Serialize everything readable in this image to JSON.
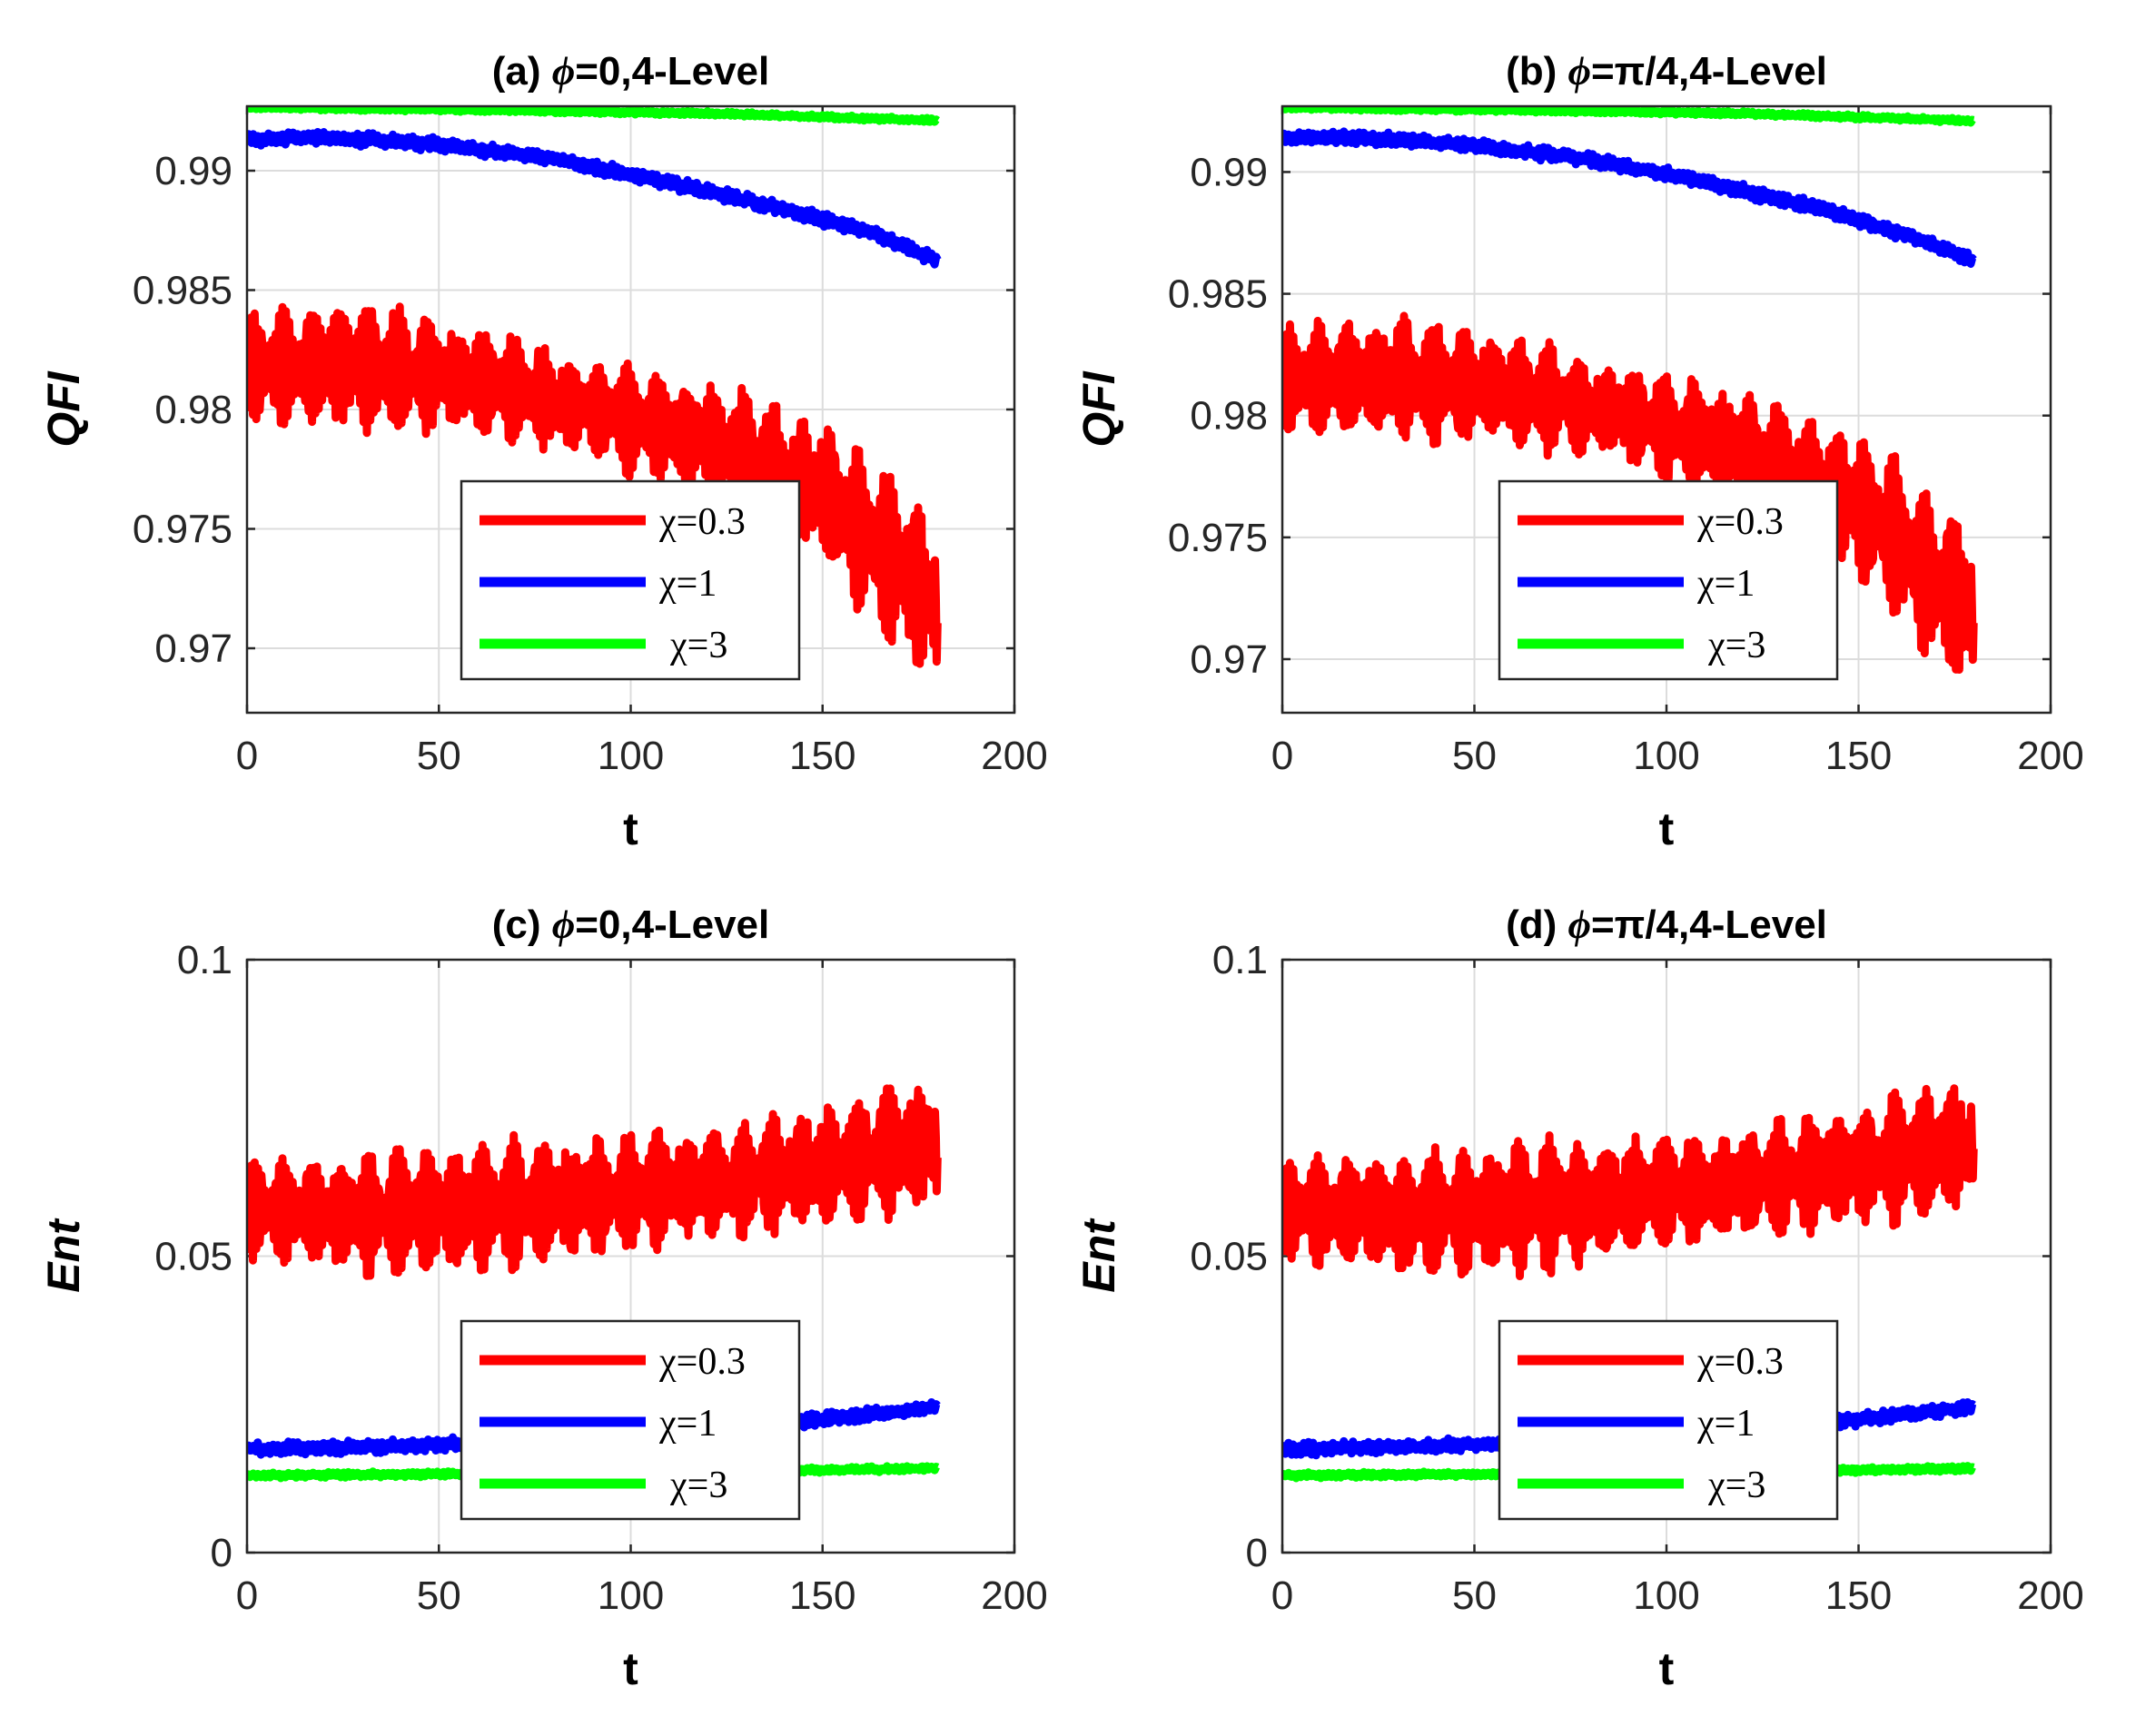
{
  "chart_data": [
    {
      "type": "line",
      "title_prefix": "(a) ",
      "title_phi": "ϕ",
      "title_suffix": "=0,4-Level",
      "xlabel": "t",
      "ylabel": "QFI",
      "xlim": [
        0,
        200
      ],
      "ylim": [
        0.9673,
        0.9927
      ],
      "xticks": [
        "0",
        "50",
        "100",
        "150",
        "200"
      ],
      "yticks": [
        {
          "value": 0.97,
          "label": "0.97"
        },
        {
          "value": 0.975,
          "label": "0.975"
        },
        {
          "value": 0.98,
          "label": "0.98"
        },
        {
          "value": 0.985,
          "label": "0.985"
        },
        {
          "value": 0.99,
          "label": "0.99"
        }
      ],
      "grid": true,
      "legend_position": "bottom-center",
      "series": [
        {
          "name": "χ=0.3",
          "color": "#ff0000",
          "t": [
            0,
            30,
            60,
            90,
            120,
            150,
            180
          ],
          "values": [
            0.9817,
            0.9818,
            0.9812,
            0.98,
            0.9787,
            0.9765,
            0.9718
          ],
          "osc_amp": [
            0.0022,
            0.0028,
            0.0022,
            0.002,
            0.0025,
            0.003,
            0.0038
          ]
        },
        {
          "name": "χ=1",
          "color": "#0000ff",
          "t": [
            0,
            20,
            50,
            80,
            110,
            140,
            165,
            180
          ],
          "values": [
            0.9913,
            0.9914,
            0.9911,
            0.9905,
            0.9895,
            0.9884,
            0.9873,
            0.9862
          ],
          "osc_amp": [
            0.0003,
            0.0003,
            0.0003,
            0.0003,
            0.0003,
            0.0003,
            0.0003,
            0.0003
          ]
        },
        {
          "name": "χ=3",
          "color": "#00ff00",
          "t": [
            0,
            60,
            120,
            180
          ],
          "values": [
            0.99265,
            0.99255,
            0.9924,
            0.9921
          ],
          "osc_amp": [
            0.0001,
            0.0001,
            0.0001,
            0.0001
          ]
        }
      ]
    },
    {
      "type": "line",
      "title_prefix": "(b) ",
      "title_phi": "ϕ",
      "title_suffix": "=π/4,4-Level",
      "xlabel": "t",
      "ylabel": "QFI",
      "xlim": [
        0,
        200
      ],
      "ylim": [
        0.9678,
        0.9927
      ],
      "xticks": [
        "0",
        "50",
        "100",
        "150",
        "200"
      ],
      "yticks": [
        {
          "value": 0.97,
          "label": "0.97"
        },
        {
          "value": 0.975,
          "label": "0.975"
        },
        {
          "value": 0.98,
          "label": "0.98"
        },
        {
          "value": 0.985,
          "label": "0.985"
        },
        {
          "value": 0.99,
          "label": "0.99"
        }
      ],
      "grid": true,
      "legend_position": "bottom-center",
      "series": [
        {
          "name": "χ=0.3",
          "color": "#ff0000",
          "t": [
            0,
            30,
            60,
            90,
            120,
            150,
            180
          ],
          "values": [
            0.9815,
            0.9815,
            0.981,
            0.98,
            0.9785,
            0.9762,
            0.9718
          ],
          "osc_amp": [
            0.0022,
            0.0026,
            0.0022,
            0.002,
            0.0025,
            0.003,
            0.0036
          ]
        },
        {
          "name": "χ=1",
          "color": "#0000ff",
          "t": [
            0,
            20,
            50,
            80,
            110,
            140,
            165,
            180
          ],
          "values": [
            0.9914,
            0.9914,
            0.9911,
            0.9905,
            0.9896,
            0.9885,
            0.9873,
            0.9863
          ],
          "osc_amp": [
            0.0003,
            0.0003,
            0.0003,
            0.0003,
            0.0003,
            0.0003,
            0.0003,
            0.0003
          ]
        },
        {
          "name": "χ=3",
          "color": "#00ff00",
          "t": [
            0,
            60,
            120,
            180
          ],
          "values": [
            0.99265,
            0.99255,
            0.9924,
            0.9921
          ],
          "osc_amp": [
            0.0001,
            0.0001,
            0.0001,
            0.0001
          ]
        }
      ]
    },
    {
      "type": "line",
      "title_prefix": "(c) ",
      "title_phi": "ϕ",
      "title_suffix": "=0,4-Level",
      "xlabel": "t",
      "ylabel": "Ent",
      "xlim": [
        0,
        200
      ],
      "ylim": [
        0,
        0.1
      ],
      "xticks": [
        "0",
        "50",
        "100",
        "150",
        "200"
      ],
      "yticks": [
        {
          "value": 0,
          "label": "0"
        },
        {
          "value": 0.05,
          "label": "0.05"
        },
        {
          "value": 0.1,
          "label": "0.1"
        }
      ],
      "grid": true,
      "legend_position": "bottom-center",
      "series": [
        {
          "name": "χ=0.3",
          "color": "#ff0000",
          "t": [
            0,
            30,
            60,
            90,
            120,
            150,
            180
          ],
          "values": [
            0.058,
            0.057,
            0.058,
            0.06,
            0.062,
            0.065,
            0.069
          ],
          "osc_amp": [
            0.008,
            0.01,
            0.011,
            0.01,
            0.009,
            0.01,
            0.011
          ]
        },
        {
          "name": "χ=1",
          "color": "#0000ff",
          "t": [
            0,
            30,
            60,
            90,
            120,
            150,
            180
          ],
          "values": [
            0.0175,
            0.0178,
            0.0185,
            0.0195,
            0.021,
            0.0225,
            0.0245
          ],
          "osc_amp": [
            0.0012,
            0.0012,
            0.0012,
            0.0012,
            0.0012,
            0.0012,
            0.0012
          ]
        },
        {
          "name": "χ=3",
          "color": "#00ff00",
          "t": [
            0,
            60,
            120,
            180
          ],
          "values": [
            0.013,
            0.0133,
            0.0137,
            0.0142
          ],
          "osc_amp": [
            0.0005,
            0.0005,
            0.0005,
            0.0005
          ]
        }
      ]
    },
    {
      "type": "line",
      "title_prefix": "(d) ",
      "title_phi": "ϕ",
      "title_suffix": "=π/4,4-Level",
      "xlabel": "t",
      "ylabel": "Ent",
      "xlim": [
        0,
        200
      ],
      "ylim": [
        0,
        0.1
      ],
      "xticks": [
        "0",
        "50",
        "100",
        "150",
        "200"
      ],
      "yticks": [
        {
          "value": 0,
          "label": "0"
        },
        {
          "value": 0.05,
          "label": "0.05"
        },
        {
          "value": 0.1,
          "label": "0.1"
        }
      ],
      "grid": true,
      "legend_position": "bottom-center",
      "series": [
        {
          "name": "χ=0.3",
          "color": "#ff0000",
          "t": [
            0,
            30,
            60,
            90,
            120,
            150,
            180
          ],
          "values": [
            0.058,
            0.057,
            0.058,
            0.06,
            0.062,
            0.065,
            0.069
          ],
          "osc_amp": [
            0.008,
            0.01,
            0.011,
            0.01,
            0.009,
            0.01,
            0.011
          ]
        },
        {
          "name": "χ=1",
          "color": "#0000ff",
          "t": [
            0,
            30,
            60,
            90,
            120,
            150,
            180
          ],
          "values": [
            0.0175,
            0.0178,
            0.0185,
            0.0195,
            0.021,
            0.0225,
            0.0245
          ],
          "osc_amp": [
            0.0012,
            0.0012,
            0.0012,
            0.0012,
            0.0012,
            0.0012,
            0.0012
          ]
        },
        {
          "name": "χ=3",
          "color": "#00ff00",
          "t": [
            0,
            60,
            120,
            180
          ],
          "values": [
            0.013,
            0.0133,
            0.0137,
            0.0142
          ],
          "osc_amp": [
            0.0005,
            0.0005,
            0.0005,
            0.0005
          ]
        }
      ]
    }
  ]
}
